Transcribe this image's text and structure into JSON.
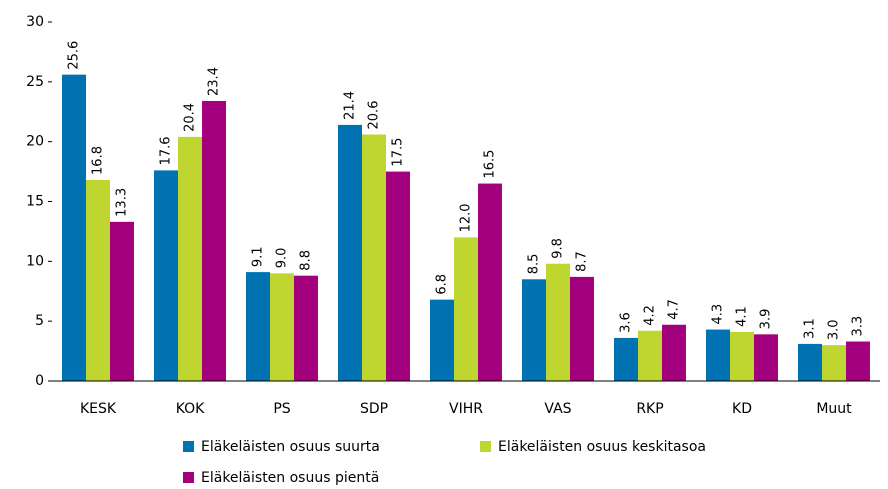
{
  "chart_data": {
    "type": "bar",
    "categories": [
      "KESK",
      "KOK",
      "PS",
      "SDP",
      "VIHR",
      "VAS",
      "RKP",
      "KD",
      "Muut"
    ],
    "series": [
      {
        "name": "Eläkeläisten osuus suurta",
        "color": "#0072b1",
        "values": [
          25.6,
          17.6,
          9.1,
          21.4,
          6.8,
          8.5,
          3.6,
          4.3,
          3.1
        ],
        "value_labels": [
          "25.6",
          "17.6",
          "9.1",
          "21.4",
          "6.8",
          "8.5",
          "3.6",
          "4.3",
          "3.1"
        ]
      },
      {
        "name": "Eläkeläisten osuus keskitasoa",
        "color": "#bfd630",
        "values": [
          16.8,
          20.4,
          9.0,
          20.6,
          12.0,
          9.8,
          4.2,
          4.1,
          3.0
        ],
        "value_labels": [
          "16.8",
          "20.4",
          "9.0",
          "20.6",
          "12.0",
          "9.8",
          "4.2",
          "4.1",
          "3.0"
        ]
      },
      {
        "name": "Eläkeläisten osuus pientä",
        "color": "#a3007d",
        "values": [
          13.3,
          23.4,
          8.8,
          17.5,
          16.5,
          8.7,
          4.7,
          3.9,
          3.3
        ],
        "value_labels": [
          "13.3",
          "23.4",
          "8.8",
          "17.5",
          "16.5",
          "8.7",
          "4.7",
          "3.9",
          "3.3"
        ]
      }
    ],
    "ylim": [
      0,
      30
    ],
    "yticks": [
      0,
      5,
      10,
      15,
      20,
      25,
      30
    ],
    "grid": false
  }
}
